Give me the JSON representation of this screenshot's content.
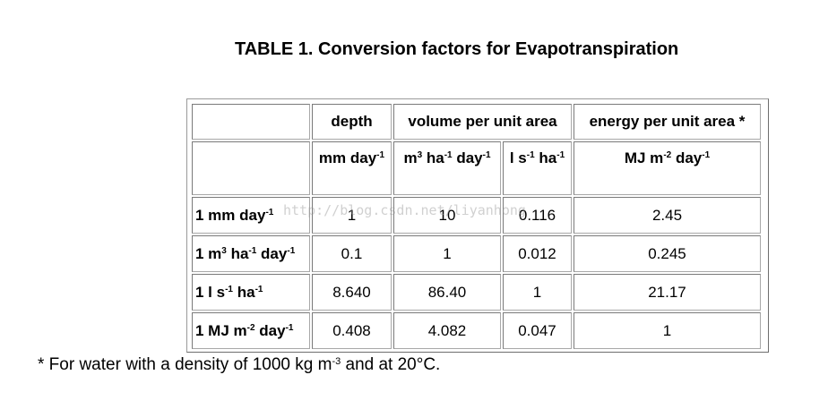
{
  "title": "TABLE 1. Conversion factors for Evapotranspiration",
  "header_row1": {
    "blank": "",
    "depth": "depth",
    "volume": "volume per unit area",
    "energy": "energy per unit area *"
  },
  "header_row2": {
    "mm_day": {
      "base": "mm day",
      "exp": "-1"
    },
    "m3_ha_day": {
      "m": "m",
      "m_exp": "3",
      "ha": " ha",
      "ha_exp": "-1",
      "day": " day",
      "day_exp": "-1"
    },
    "l_s_ha": {
      "l": "l s",
      "s_exp": "-1",
      "ha": " ha",
      "ha_exp": "-1"
    },
    "mj_m2_day": {
      "mj": "MJ m",
      "m_exp": "-2",
      "day": " day",
      "day_exp": "-1"
    }
  },
  "rows": [
    {
      "label": {
        "base": "1 mm day",
        "exp": "-1"
      },
      "values": [
        "1",
        "10",
        "0.116",
        "2.45"
      ]
    },
    {
      "label": {
        "m": "1 m",
        "m_exp": "3",
        "ha": " ha",
        "ha_exp": "-1",
        "day": " day",
        "day_exp": "-1"
      },
      "values": [
        "0.1",
        "1",
        "0.012",
        "0.245"
      ]
    },
    {
      "label": {
        "l": "1 l s",
        "s_exp": "-1",
        "ha": " ha",
        "ha_exp": "-1"
      },
      "values": [
        "8.640",
        "86.40",
        "1",
        "21.17"
      ]
    },
    {
      "label": {
        "mj": "1 MJ m",
        "m_exp": "-2",
        "day": " day",
        "day_exp": "-1"
      },
      "values": [
        "0.408",
        "4.082",
        "0.047",
        "1"
      ]
    }
  ],
  "footnote": {
    "pre": "* For water with a density of 1000 kg m",
    "exp": "-3",
    "post": " and at 20°C."
  },
  "watermark": "http://blog.csdn.net/liyanhong"
}
